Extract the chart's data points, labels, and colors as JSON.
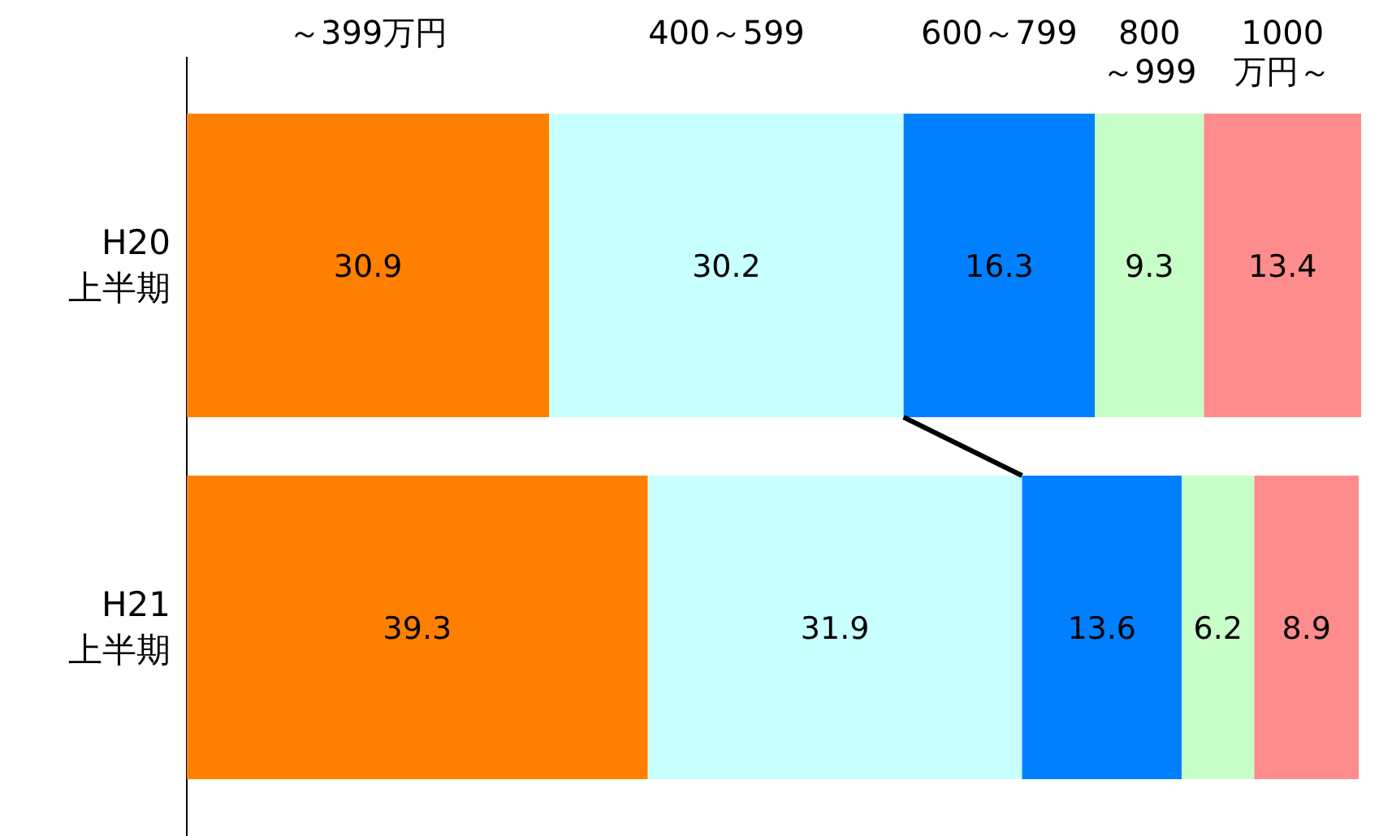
{
  "chart_data": {
    "type": "bar",
    "orientation": "horizontal",
    "stacked": true,
    "data_labels": true,
    "categories": [
      "H20\n上半期",
      "H21\n上半期"
    ],
    "series": [
      {
        "name": "～399万円",
        "color": "#ff8000",
        "values": [
          30.9,
          39.3
        ]
      },
      {
        "name": "400～599",
        "color": "#c8ffff",
        "values": [
          30.2,
          31.9
        ]
      },
      {
        "name": "600～799",
        "color": "#0080ff",
        "values": [
          16.3,
          13.6
        ]
      },
      {
        "name": "800\n～999",
        "color": "#c8ffc8",
        "values": [
          9.3,
          6.2
        ]
      },
      {
        "name": "1000\n万円～",
        "color": "#ff8c8c",
        "values": [
          13.4,
          8.9
        ]
      }
    ]
  }
}
